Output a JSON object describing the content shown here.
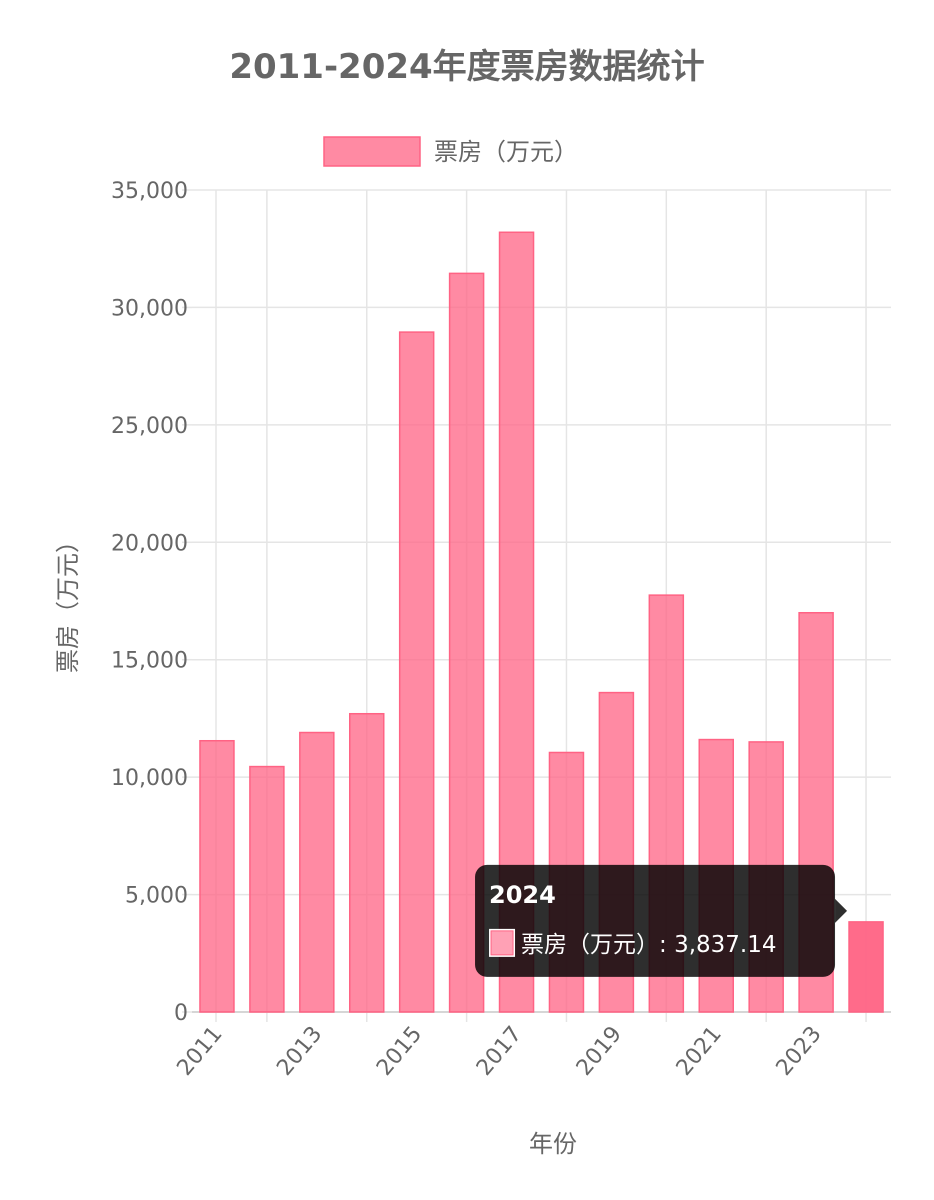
{
  "chart_data": {
    "type": "bar",
    "title": "2011-2024年度票房数据统计",
    "xlabel": "年份",
    "ylabel": "票房（万元）",
    "legend": {
      "position": "top",
      "label": "票房（万元）"
    },
    "ylim": [
      0,
      35000
    ],
    "y_ticks": [
      0,
      5000,
      10000,
      15000,
      20000,
      25000,
      30000,
      35000
    ],
    "grid": true,
    "colors": {
      "bar_fill": "rgba(255,99,132,0.75)",
      "bar_border": "#ff6384",
      "tooltip_bg": "rgba(0,0,0,0.8)"
    },
    "categories": [
      "2011",
      "2012",
      "2013",
      "2014",
      "2015",
      "2016",
      "2017",
      "2018",
      "2019",
      "2020",
      "2021",
      "2022",
      "2023",
      "2024"
    ],
    "x_tick_labels": [
      "2011",
      "2013",
      "2015",
      "2017",
      "2019",
      "2021",
      "2023"
    ],
    "series": [
      {
        "name": "票房（万元）",
        "values": [
          11550,
          10450,
          11900,
          12700,
          28950,
          31450,
          33200,
          11050,
          13600,
          17750,
          11600,
          11500,
          17000,
          3837.14
        ]
      }
    ],
    "tooltip": {
      "title": "2024",
      "label": "票房（万元）",
      "value_text": "3,837.14",
      "active_index": 13
    }
  }
}
